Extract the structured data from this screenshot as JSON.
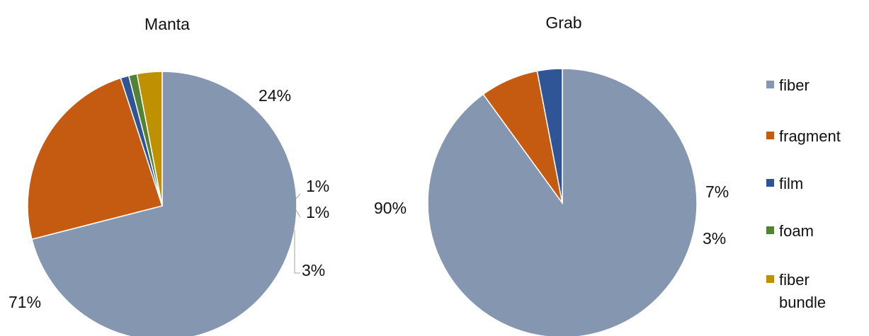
{
  "legend": [
    {
      "label": "fiber",
      "color": "#8496b0"
    },
    {
      "label": "fragment",
      "color": "#c55a11"
    },
    {
      "label": "film",
      "color": "#2f5597"
    },
    {
      "label": "foam",
      "color": "#548235"
    },
    {
      "label": "fiber bundle",
      "color": "#bf9000"
    }
  ],
  "chart_data": [
    {
      "type": "pie",
      "title": "Manta",
      "categories": [
        "fiber",
        "fragment",
        "film",
        "foam",
        "fiber bundle"
      ],
      "values": [
        71,
        24,
        1,
        1,
        3
      ],
      "labels": [
        "71%",
        "24%",
        "1%",
        "1%",
        "3%"
      ],
      "colors": [
        "#8496b0",
        "#c55a11",
        "#2f5597",
        "#548235",
        "#bf9000"
      ]
    },
    {
      "type": "pie",
      "title": "Grab",
      "categories": [
        "fiber",
        "fragment",
        "film"
      ],
      "values": [
        90,
        7,
        3
      ],
      "labels": [
        "90%",
        "7%",
        "3%"
      ],
      "colors": [
        "#8496b0",
        "#c55a11",
        "#2f5597"
      ]
    }
  ]
}
